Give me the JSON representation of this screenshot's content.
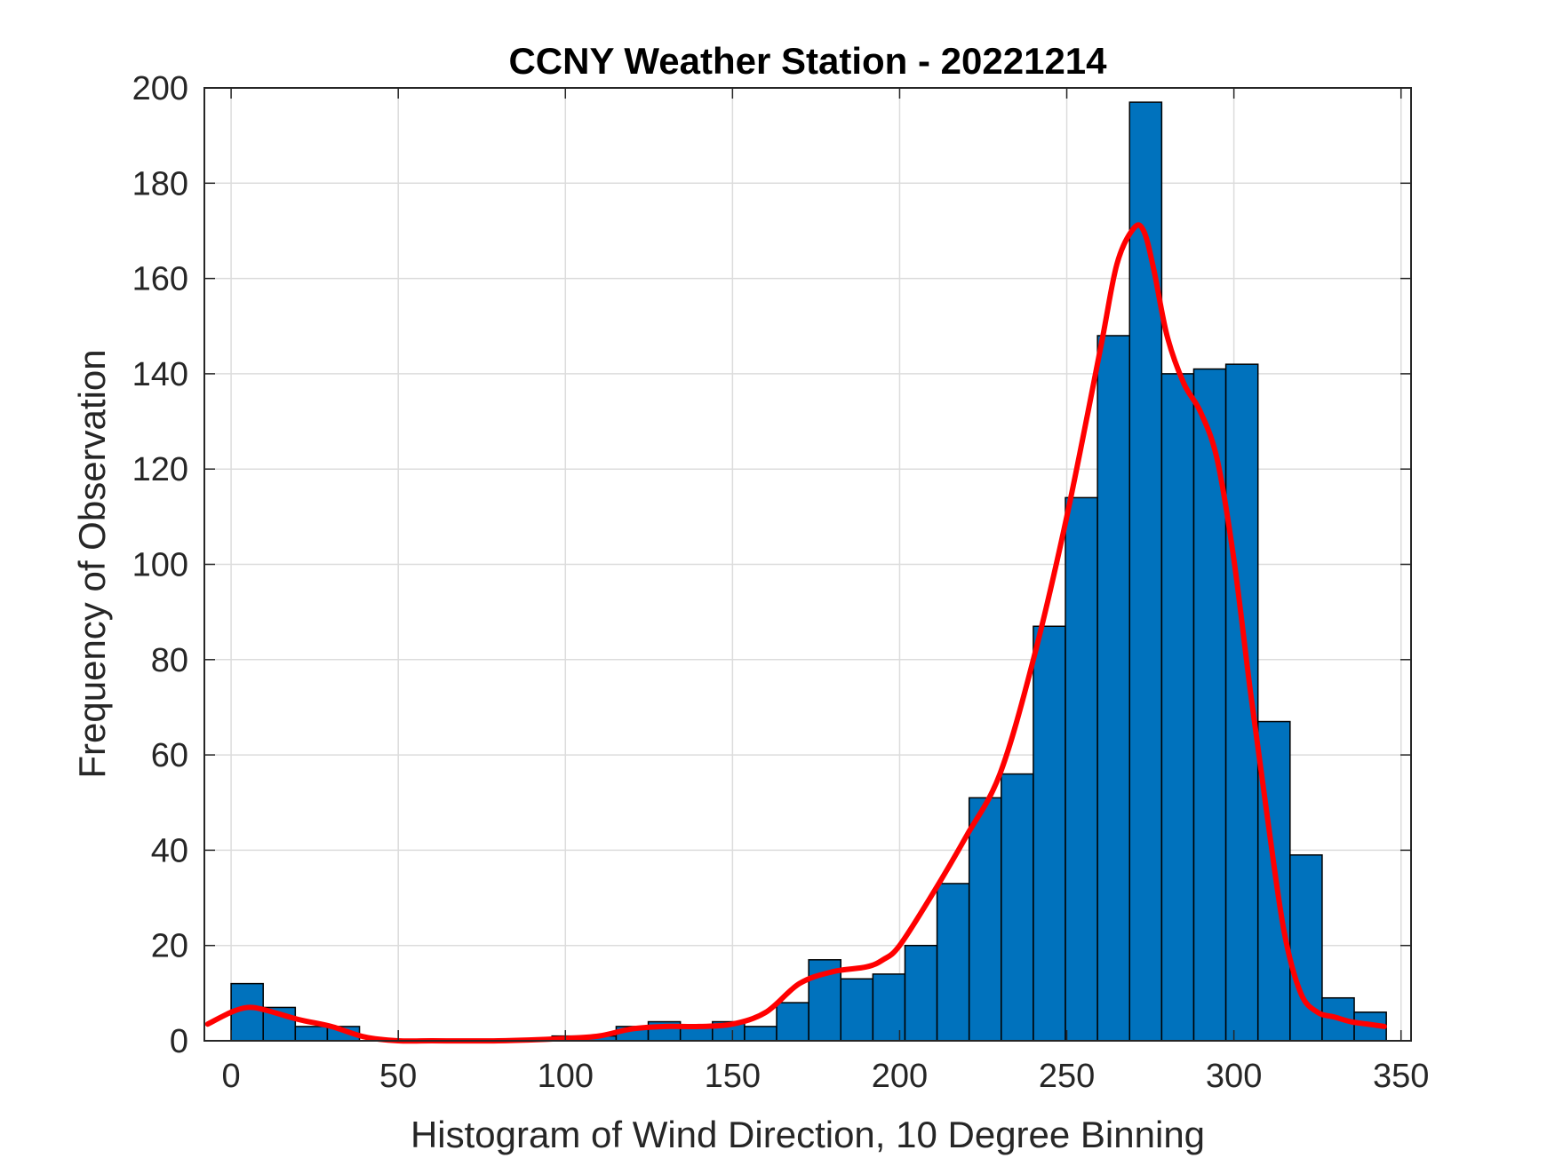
{
  "chart_data": {
    "type": "bar",
    "title": "CCNY Weather Station - 20221214",
    "xlabel": "Histogram of Wind Direction, 10 Degree Binning",
    "ylabel": "Frequency of Observation",
    "xlim": [
      -8,
      353
    ],
    "ylim": [
      0,
      200
    ],
    "grid": true,
    "x_ticks": [
      0,
      50,
      100,
      150,
      200,
      250,
      300,
      350
    ],
    "y_ticks": [
      0,
      20,
      40,
      60,
      80,
      100,
      120,
      140,
      160,
      180,
      200
    ],
    "bin_width": 9.6,
    "bins": [
      {
        "start": 0,
        "value": 12
      },
      {
        "start": 9.6,
        "value": 7
      },
      {
        "start": 19.2,
        "value": 3
      },
      {
        "start": 28.8,
        "value": 3
      },
      {
        "start": 38.4,
        "value": 0
      },
      {
        "start": 48.0,
        "value": 0
      },
      {
        "start": 57.6,
        "value": 0
      },
      {
        "start": 67.2,
        "value": 0
      },
      {
        "start": 76.8,
        "value": 0
      },
      {
        "start": 86.4,
        "value": 0
      },
      {
        "start": 96.0,
        "value": 1
      },
      {
        "start": 105.6,
        "value": 1
      },
      {
        "start": 115.2,
        "value": 3
      },
      {
        "start": 124.8,
        "value": 4
      },
      {
        "start": 134.4,
        "value": 3
      },
      {
        "start": 144.0,
        "value": 4
      },
      {
        "start": 153.6,
        "value": 3
      },
      {
        "start": 163.2,
        "value": 8
      },
      {
        "start": 172.8,
        "value": 17
      },
      {
        "start": 182.4,
        "value": 13
      },
      {
        "start": 192.0,
        "value": 14
      },
      {
        "start": 201.6,
        "value": 20
      },
      {
        "start": 211.2,
        "value": 33
      },
      {
        "start": 220.8,
        "value": 51
      },
      {
        "start": 230.4,
        "value": 56
      },
      {
        "start": 240.0,
        "value": 87
      },
      {
        "start": 249.6,
        "value": 114
      },
      {
        "start": 259.2,
        "value": 148
      },
      {
        "start": 268.8,
        "value": 197
      },
      {
        "start": 278.4,
        "value": 140
      },
      {
        "start": 288.0,
        "value": 141
      },
      {
        "start": 297.6,
        "value": 142
      },
      {
        "start": 307.2,
        "value": 67
      },
      {
        "start": 316.8,
        "value": 39
      },
      {
        "start": 326.4,
        "value": 9
      },
      {
        "start": 336.0,
        "value": 6
      }
    ],
    "fit_curve": {
      "color": "#ff0000",
      "x": [
        -7,
        0,
        5,
        10,
        20,
        30,
        40,
        50,
        60,
        80,
        100,
        110,
        120,
        130,
        140,
        150,
        160,
        170,
        180,
        190,
        195,
        200,
        210,
        220,
        230,
        240,
        250,
        260,
        265,
        270,
        273,
        276,
        280,
        285,
        290,
        295,
        300,
        305,
        310,
        315,
        320,
        325,
        330,
        335,
        340,
        345
      ],
      "y": [
        3.5,
        6,
        7,
        6.5,
        4.5,
        3,
        0.8,
        0,
        0,
        0,
        0.5,
        1,
        2.5,
        3,
        3,
        3.5,
        6,
        12,
        14.5,
        15.5,
        17,
        20,
        31,
        43,
        56,
        80,
        110,
        145,
        163,
        170.5,
        170,
        162,
        148,
        138,
        132,
        122,
        101,
        73,
        47,
        23,
        10,
        6,
        5,
        4,
        3.5,
        3
      ]
    },
    "colors": {
      "bar_fill": "#0072bd",
      "bar_edge": "#000000",
      "grid": "#dcdcdc",
      "axis": "#262626",
      "background": "#ffffff"
    }
  }
}
